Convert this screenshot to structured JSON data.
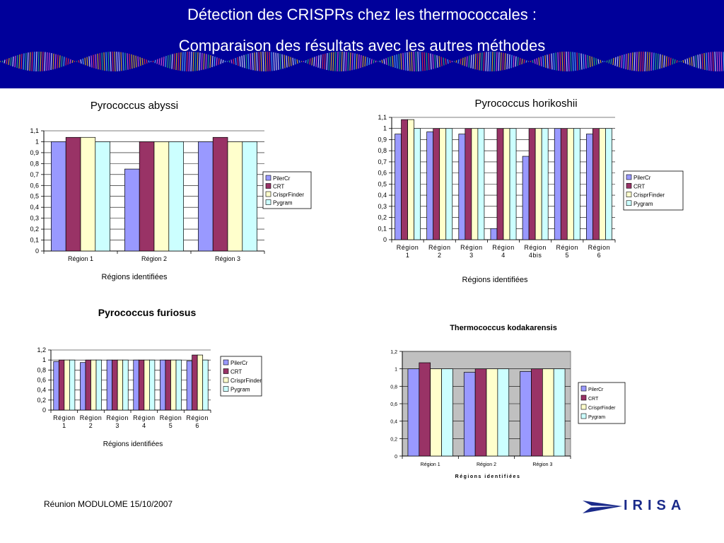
{
  "header": {
    "title_line1": "Détection des CRISPRs chez les thermococcales :",
    "title_line2": "Comparaison des résultats avec les autres méthodes"
  },
  "footer": {
    "text": "Réunion MODULOME 15/10/2007",
    "logo_text": "IRISA"
  },
  "colors": {
    "header_bg": "#00009a",
    "series": [
      "#9999ff",
      "#993366",
      "#ffffcc",
      "#ccffff"
    ],
    "plot_bg_gray": "#c0c0c0"
  },
  "chart_data": [
    {
      "type": "bar",
      "title": "Pyrococcus abyssi",
      "xlabel": "Régions identifiées",
      "ylabel": "",
      "categories": [
        "Région 1",
        "Région 2",
        "Région 3"
      ],
      "yticks": [
        "0",
        "0,1",
        "0,2",
        "0,3",
        "0,4",
        "0,5",
        "0,6",
        "0,7",
        "0,8",
        "0,9",
        "1",
        "1,1"
      ],
      "ylim": [
        0,
        1.1
      ],
      "grid": true,
      "legend": "right",
      "series": [
        {
          "name": "PilerCr",
          "values": [
            1.0,
            0.75,
            1.0
          ]
        },
        {
          "name": "CRT",
          "values": [
            1.04,
            1.0,
            1.04
          ]
        },
        {
          "name": "CrisprFinder",
          "values": [
            1.04,
            1.0,
            1.0
          ]
        },
        {
          "name": "Pygram",
          "values": [
            1.0,
            1.0,
            1.0
          ]
        }
      ]
    },
    {
      "type": "bar",
      "title": "Pyrococcus horikoshii",
      "xlabel": "Régions identifiées",
      "ylabel": "",
      "categories": [
        "Région 1",
        "Région 2",
        "Région 3",
        "Région 4",
        "Région 4bis",
        "Région 5",
        "Région 6"
      ],
      "yticks": [
        "0",
        "0,1",
        "0,2",
        "0,3",
        "0,4",
        "0,5",
        "0,6",
        "0,7",
        "0,8",
        "0,9",
        "1",
        "1,1"
      ],
      "ylim": [
        0,
        1.1
      ],
      "grid": true,
      "legend": "right",
      "series": [
        {
          "name": "PilerCr",
          "values": [
            0.95,
            0.97,
            0.95,
            0.1,
            0.75,
            1.0,
            0.95
          ]
        },
        {
          "name": "CRT",
          "values": [
            1.08,
            1.0,
            1.0,
            1.0,
            1.0,
            1.0,
            1.0
          ]
        },
        {
          "name": "CrisprFinder",
          "values": [
            1.08,
            1.0,
            1.0,
            1.0,
            1.0,
            1.0,
            1.0
          ]
        },
        {
          "name": "Pygram",
          "values": [
            1.0,
            1.0,
            1.0,
            1.0,
            1.0,
            1.0,
            1.0
          ]
        }
      ]
    },
    {
      "type": "bar",
      "title": "Pyrococcus furiosus",
      "xlabel": "Régions identifiées",
      "ylabel": "",
      "categories": [
        "Région 1",
        "Région 2",
        "Région 3",
        "Région 4",
        "Région 5",
        "Région 6"
      ],
      "yticks": [
        "0",
        "0,2",
        "0,4",
        "0,6",
        "0,8",
        "1",
        "1,2"
      ],
      "ylim": [
        0,
        1.2
      ],
      "grid": true,
      "legend": "right",
      "series": [
        {
          "name": "PilerCr",
          "values": [
            0.97,
            0.95,
            1.0,
            1.0,
            1.0,
            0.98
          ]
        },
        {
          "name": "CRT",
          "values": [
            1.0,
            1.0,
            1.0,
            1.0,
            1.0,
            1.1
          ]
        },
        {
          "name": "CrisprFinder",
          "values": [
            1.0,
            1.0,
            1.0,
            1.0,
            1.0,
            1.1
          ]
        },
        {
          "name": "Pygram",
          "values": [
            1.0,
            1.0,
            1.0,
            1.0,
            1.0,
            1.0
          ]
        }
      ]
    },
    {
      "type": "bar",
      "title": "Thermococcus kodakarensis",
      "xlabel": "Régions identifiées",
      "ylabel": "",
      "categories": [
        "Région 1",
        "Région 2",
        "Région 3"
      ],
      "yticks": [
        "0",
        "0,2",
        "0,4",
        "0,6",
        "0,8",
        "1",
        "1,2"
      ],
      "ylim": [
        0,
        1.2
      ],
      "grid": true,
      "legend": "right",
      "series": [
        {
          "name": "PilerCr",
          "values": [
            1.0,
            0.96,
            0.97
          ]
        },
        {
          "name": "CRT",
          "values": [
            1.07,
            1.0,
            1.0
          ]
        },
        {
          "name": "CrisprFinder",
          "values": [
            1.0,
            1.0,
            1.0
          ]
        },
        {
          "name": "Pygram",
          "values": [
            1.0,
            1.0,
            1.0
          ]
        }
      ]
    }
  ]
}
